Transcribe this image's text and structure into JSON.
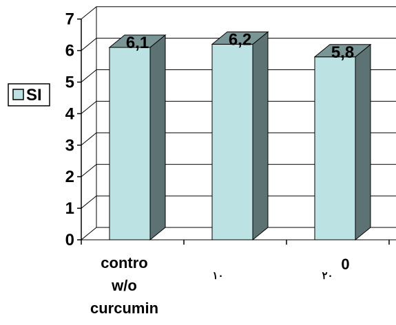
{
  "chart_data": {
    "type": "bar",
    "categories": [
      [
        "contro",
        "w/o",
        "curcumin"
      ],
      [
        "١٠"
      ],
      [
        "٢٠",
        "0"
      ]
    ],
    "series": [
      {
        "name": "SI",
        "values": [
          6.1,
          6.2,
          5.8
        ],
        "data_labels": [
          "6,1",
          "6,2",
          "5,8"
        ]
      }
    ],
    "yticks": [
      "0",
      "1",
      "2",
      "3",
      "4",
      "5",
      "6",
      "7"
    ],
    "ylim": [
      0,
      7
    ],
    "grid": true,
    "legend": "left",
    "style": "3d",
    "colors": {
      "bar_front": "#bde2e4",
      "bar_side": "#5d7272",
      "bar_top": "#7a9595",
      "stroke": "#000000",
      "gridline": "#000000"
    }
  }
}
